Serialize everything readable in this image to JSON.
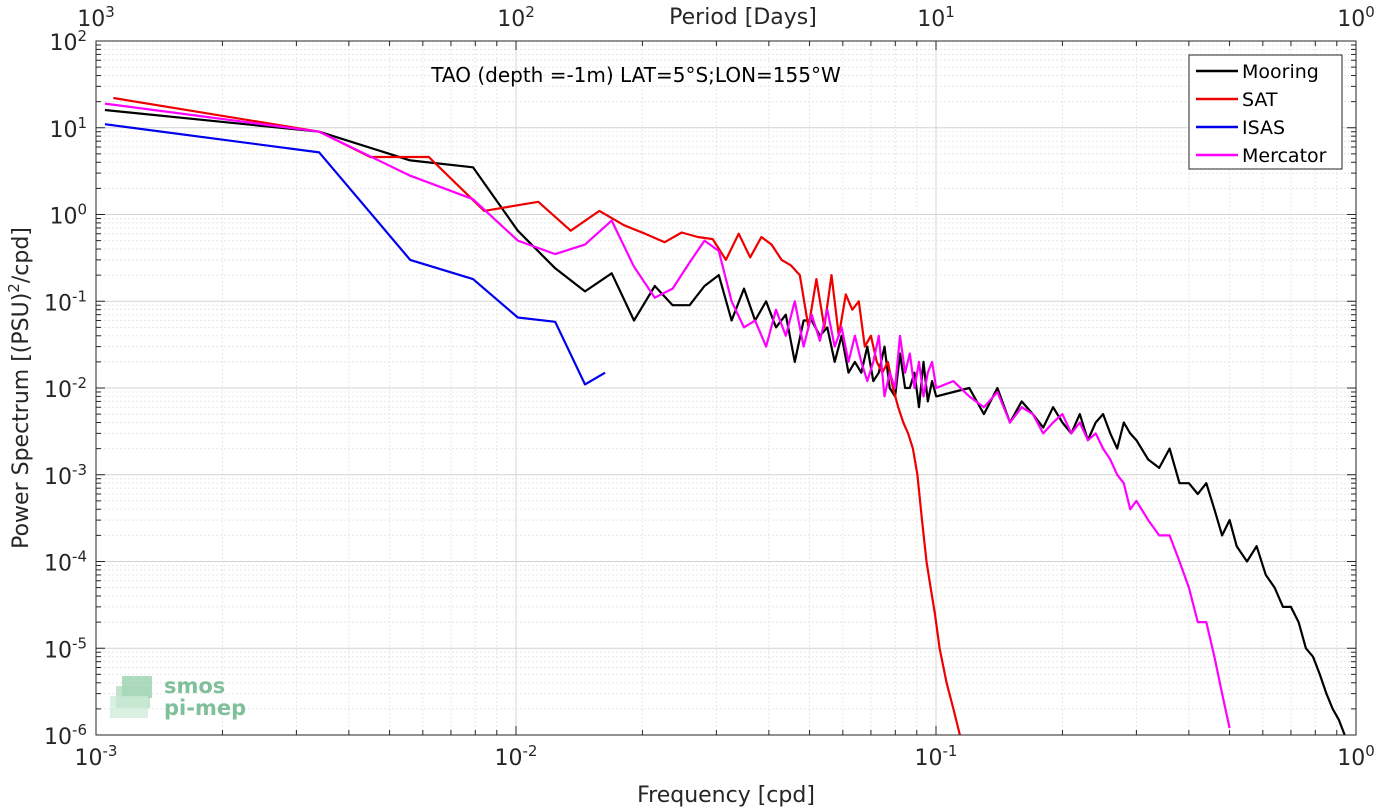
{
  "chart_data": {
    "type": "line",
    "title": "TAO (depth =-1m) LAT=5°S;LON=155°W",
    "xlabel": "Frequency [cpd]",
    "ylabel": "Power Spectrum [(PSU)^2/cpd]",
    "top_xlabel": "Period [Days]",
    "xscale": "log",
    "yscale": "log",
    "xlim": [
      0.001,
      1
    ],
    "ylim": [
      1e-06,
      100
    ],
    "grid": true,
    "legend_position": "top-right",
    "x_ticks": [
      {
        "base": "10",
        "exp": "-3"
      },
      {
        "base": "10",
        "exp": "-2"
      },
      {
        "base": "10",
        "exp": "-1"
      },
      {
        "base": "10",
        "exp": "0"
      }
    ],
    "top_x_ticks": [
      {
        "base": "10",
        "exp": "3"
      },
      {
        "base": "10",
        "exp": "2"
      },
      {
        "base": "10",
        "exp": "1"
      },
      {
        "base": "10",
        "exp": "0"
      }
    ],
    "y_ticks": [
      {
        "base": "10",
        "exp": "-6"
      },
      {
        "base": "10",
        "exp": "-5"
      },
      {
        "base": "10",
        "exp": "-4"
      },
      {
        "base": "10",
        "exp": "-3"
      },
      {
        "base": "10",
        "exp": "-2"
      },
      {
        "base": "10",
        "exp": "-1"
      },
      {
        "base": "10",
        "exp": "0"
      },
      {
        "base": "10",
        "exp": "1"
      },
      {
        "base": "10",
        "exp": "2"
      }
    ],
    "series": [
      {
        "name": "Mooring",
        "color": "#000000",
        "x": [
          0.00105,
          0.0034,
          0.0056,
          0.0079,
          0.0101,
          0.0124,
          0.0146,
          0.0169,
          0.0191,
          0.0214,
          0.0236,
          0.0259,
          0.0281,
          0.0304,
          0.0326,
          0.0349,
          0.0371,
          0.0394,
          0.0416,
          0.0439,
          0.0461,
          0.0484,
          0.0506,
          0.0529,
          0.0551,
          0.0574,
          0.0596,
          0.0619,
          0.0641,
          0.0664,
          0.0686,
          0.0709,
          0.0731,
          0.0754,
          0.0776,
          0.0799,
          0.0821,
          0.0844,
          0.0866,
          0.0889,
          0.0911,
          0.0934,
          0.0956,
          0.0979,
          0.1001,
          0.11,
          0.12,
          0.13,
          0.14,
          0.15,
          0.16,
          0.17,
          0.18,
          0.19,
          0.2,
          0.21,
          0.22,
          0.23,
          0.24,
          0.25,
          0.26,
          0.27,
          0.28,
          0.29,
          0.3,
          0.32,
          0.34,
          0.36,
          0.38,
          0.4,
          0.42,
          0.44,
          0.46,
          0.48,
          0.5,
          0.52,
          0.55,
          0.58,
          0.61,
          0.64,
          0.67,
          0.7,
          0.73,
          0.76,
          0.79,
          0.82,
          0.85,
          0.88,
          0.91,
          0.94
        ],
        "y": [
          16,
          9,
          4.2,
          3.5,
          0.65,
          0.24,
          0.13,
          0.21,
          0.06,
          0.15,
          0.09,
          0.09,
          0.15,
          0.2,
          0.06,
          0.14,
          0.06,
          0.1,
          0.05,
          0.07,
          0.02,
          0.06,
          0.06,
          0.04,
          0.05,
          0.02,
          0.04,
          0.015,
          0.02,
          0.015,
          0.03,
          0.012,
          0.015,
          0.03,
          0.01,
          0.008,
          0.025,
          0.01,
          0.01,
          0.015,
          0.006,
          0.02,
          0.007,
          0.012,
          0.008,
          0.009,
          0.01,
          0.005,
          0.01,
          0.004,
          0.007,
          0.005,
          0.0035,
          0.006,
          0.004,
          0.003,
          0.005,
          0.0025,
          0.004,
          0.005,
          0.003,
          0.002,
          0.004,
          0.003,
          0.0025,
          0.0015,
          0.0012,
          0.002,
          0.0008,
          0.0008,
          0.0006,
          0.0008,
          0.0004,
          0.0002,
          0.0003,
          0.00015,
          0.0001,
          0.00015,
          7e-05,
          5e-05,
          3e-05,
          3e-05,
          2e-05,
          1e-05,
          8e-06,
          5e-06,
          3e-06,
          2e-06,
          1.5e-06,
          1e-06
        ]
      },
      {
        "name": "SAT",
        "color": "#ee0000",
        "x": [
          0.0011,
          0.0034,
          0.0045,
          0.0062,
          0.0084,
          0.0113,
          0.0135,
          0.0158,
          0.0181,
          0.0203,
          0.0226,
          0.0248,
          0.0271,
          0.0294,
          0.0316,
          0.0339,
          0.0361,
          0.0384,
          0.0406,
          0.0429,
          0.0451,
          0.0474,
          0.0497,
          0.0519,
          0.0542,
          0.0564,
          0.0587,
          0.061,
          0.0632,
          0.0655,
          0.0677,
          0.07,
          0.0723,
          0.0745,
          0.0768,
          0.079,
          0.0813,
          0.0836,
          0.0858,
          0.0881,
          0.0903,
          0.0926,
          0.0949,
          0.0971,
          0.0994,
          0.102,
          0.106,
          0.11,
          0.114
        ],
        "y": [
          22,
          9,
          4.6,
          4.6,
          1.1,
          1.4,
          0.65,
          1.1,
          0.75,
          0.6,
          0.48,
          0.62,
          0.55,
          0.52,
          0.3,
          0.6,
          0.32,
          0.55,
          0.45,
          0.3,
          0.26,
          0.2,
          0.05,
          0.18,
          0.05,
          0.2,
          0.04,
          0.12,
          0.08,
          0.1,
          0.03,
          0.04,
          0.02,
          0.015,
          0.02,
          0.01,
          0.006,
          0.004,
          0.003,
          0.002,
          0.001,
          0.0003,
          0.0001,
          5e-05,
          2.5e-05,
          1e-05,
          4e-06,
          2e-06,
          1e-06
        ]
      },
      {
        "name": "ISAS",
        "color": "#0000ee",
        "x": [
          0.00105,
          0.0034,
          0.0056,
          0.0079,
          0.0101,
          0.0124,
          0.0146,
          0.0163
        ],
        "y": [
          11,
          5.2,
          0.3,
          0.18,
          0.065,
          0.058,
          0.011,
          0.015
        ]
      },
      {
        "name": "Mercator",
        "color": "#ff00ff",
        "x": [
          0.00105,
          0.0034,
          0.0056,
          0.0079,
          0.0101,
          0.0124,
          0.0146,
          0.0169,
          0.0191,
          0.0214,
          0.0236,
          0.0259,
          0.0281,
          0.0304,
          0.0326,
          0.0349,
          0.0371,
          0.0394,
          0.0416,
          0.0439,
          0.0461,
          0.0484,
          0.0506,
          0.0529,
          0.0551,
          0.0574,
          0.0596,
          0.0619,
          0.0641,
          0.0664,
          0.0686,
          0.0709,
          0.0731,
          0.0754,
          0.0776,
          0.0799,
          0.0821,
          0.0844,
          0.0866,
          0.0889,
          0.0911,
          0.0934,
          0.0956,
          0.0979,
          0.1001,
          0.11,
          0.12,
          0.13,
          0.14,
          0.15,
          0.16,
          0.17,
          0.18,
          0.19,
          0.2,
          0.21,
          0.22,
          0.23,
          0.24,
          0.25,
          0.26,
          0.27,
          0.28,
          0.29,
          0.3,
          0.32,
          0.34,
          0.36,
          0.38,
          0.4,
          0.42,
          0.44,
          0.46,
          0.48,
          0.5
        ],
        "y": [
          19,
          9,
          2.8,
          1.5,
          0.5,
          0.35,
          0.45,
          0.85,
          0.25,
          0.11,
          0.14,
          0.28,
          0.5,
          0.38,
          0.1,
          0.05,
          0.06,
          0.03,
          0.08,
          0.04,
          0.1,
          0.03,
          0.07,
          0.035,
          0.08,
          0.03,
          0.05,
          0.02,
          0.04,
          0.02,
          0.012,
          0.02,
          0.04,
          0.008,
          0.015,
          0.01,
          0.04,
          0.015,
          0.025,
          0.01,
          0.02,
          0.008,
          0.015,
          0.02,
          0.01,
          0.012,
          0.008,
          0.006,
          0.009,
          0.004,
          0.006,
          0.005,
          0.003,
          0.004,
          0.005,
          0.003,
          0.004,
          0.0025,
          0.003,
          0.002,
          0.0015,
          0.001,
          0.0008,
          0.0004,
          0.0005,
          0.0003,
          0.0002,
          0.0002,
          0.0001,
          5e-05,
          2e-05,
          2e-05,
          8e-06,
          3e-06,
          1.2e-06
        ]
      }
    ]
  },
  "logo": {
    "line1": "smos",
    "line2": "pi-mep"
  }
}
